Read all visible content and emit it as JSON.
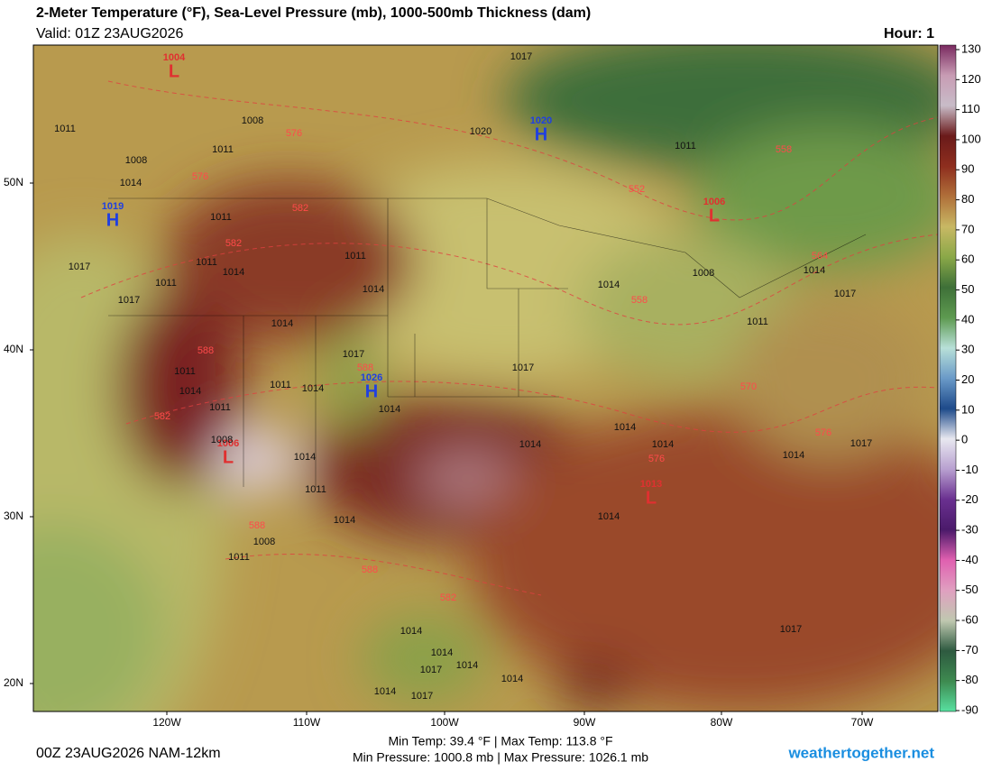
{
  "header": {
    "title": "2-Meter Temperature (°F), Sea-Level Pressure (mb), 1000-500mb Thickness (dam)",
    "valid": "Valid: 01Z 23AUG2026",
    "hour": "Hour: 1"
  },
  "map": {
    "lat_labels": [
      "50N",
      "40N",
      "30N",
      "20N"
    ],
    "lon_labels": [
      "120W",
      "110W",
      "100W",
      "90W",
      "80W",
      "70W"
    ],
    "pressure_centers": [
      {
        "symbol": "H",
        "value": 1020
      },
      {
        "symbol": "H",
        "value": 1019
      },
      {
        "symbol": "H",
        "value": 1026
      },
      {
        "symbol": "L",
        "value": 1004
      },
      {
        "symbol": "L",
        "value": 1006
      },
      {
        "symbol": "L",
        "value": 1006
      },
      {
        "symbol": "L",
        "value": 1013
      }
    ],
    "isobar_labels": [
      1017,
      1008,
      1011,
      1011,
      1008,
      1014,
      1020,
      1011,
      1011,
      1017,
      1011,
      1014,
      1011,
      1011,
      1017,
      1014,
      1014,
      1014,
      1008,
      1014,
      1017,
      1011,
      1017,
      1017,
      1011,
      1014,
      1011,
      1014,
      1011,
      1014,
      1014,
      1008,
      1014,
      1014,
      1014,
      1017,
      1014,
      1011,
      1014,
      1014,
      1008,
      1011,
      1014,
      1014,
      1017,
      1014,
      1014,
      1014,
      1017,
      1017
    ],
    "thickness_labels": [
      576,
      576,
      582,
      582,
      588,
      588,
      582,
      588,
      588,
      582,
      552,
      558,
      564,
      558,
      570,
      576,
      576
    ]
  },
  "colorbar": {
    "ticks": [
      130,
      120,
      110,
      100,
      90,
      80,
      70,
      60,
      50,
      40,
      30,
      20,
      10,
      0,
      -10,
      -20,
      -30,
      -40,
      -50,
      -60,
      -70,
      -80,
      -90
    ],
    "colors": [
      "#7a2a60",
      "#c89cb4",
      "#c8bcc8",
      "#6a1a1a",
      "#8e2e1e",
      "#b0703a",
      "#c8b864",
      "#8aa848",
      "#3e7038",
      "#5e9a50",
      "#b8e0d8",
      "#6a9ac8",
      "#1e4a8a",
      "#e8e8f0",
      "#b8a0d0",
      "#6a3090",
      "#4a1a6a",
      "#e060b0",
      "#e0a0c0",
      "#c0c8b0",
      "#2e5a40",
      "#3e8a50",
      "#58e0a0"
    ]
  },
  "footer": {
    "run": "00Z 23AUG2026 NAM-12km",
    "temps": "Min Temp:  39.4 °F | Max Temp: 113.8 °F",
    "pressures": "Min Pressure: 1000.8 mb | Max Pressure: 1026.1 mb",
    "site": "weathertogether.net"
  }
}
